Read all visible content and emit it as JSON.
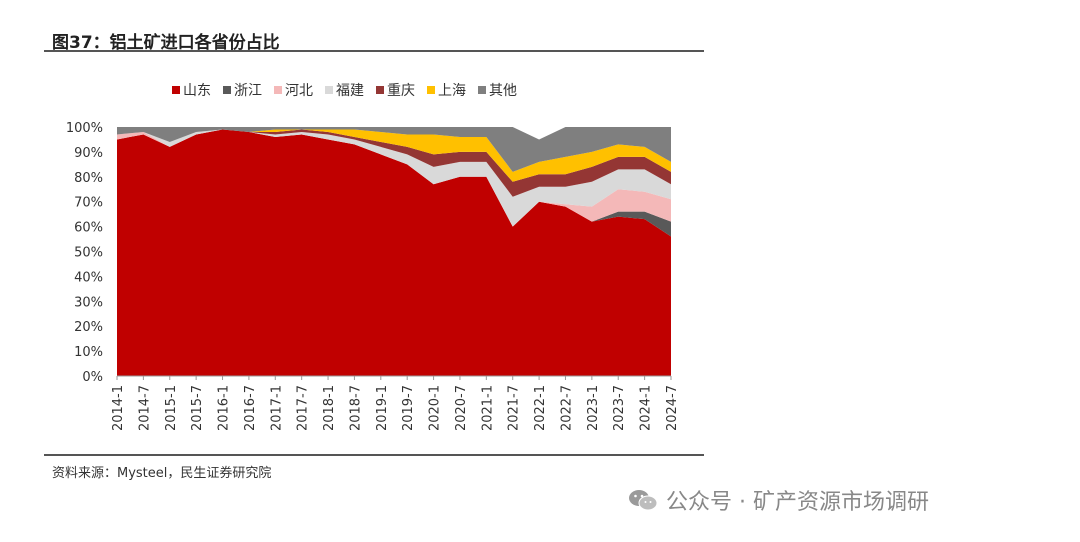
{
  "figure": {
    "title": "图37：铝土矿进口各省份占比",
    "source": "资料来源：Mysteel，民生证券研究院"
  },
  "watermark": {
    "icon": "wechat-icon",
    "text": "公众号 · 矿产资源市场调研"
  },
  "chart_data": {
    "type": "area",
    "stacked": true,
    "normalized": true,
    "yticks": [
      "0%",
      "10%",
      "20%",
      "30%",
      "40%",
      "50%",
      "60%",
      "70%",
      "80%",
      "90%",
      "100%"
    ],
    "ylim": [
      0,
      100
    ],
    "legend_position": "top",
    "categories": [
      "2014-1",
      "2014-7",
      "2015-1",
      "2015-7",
      "2016-1",
      "2016-7",
      "2017-1",
      "2017-7",
      "2018-1",
      "2018-7",
      "2019-1",
      "2019-7",
      "2020-1",
      "2020-7",
      "2021-1",
      "2021-7",
      "2022-1",
      "2022-7",
      "2023-1",
      "2023-7",
      "2024-1",
      "2024-7"
    ],
    "series": [
      {
        "name": "山东",
        "color": "#C00000",
        "values": [
          95,
          97,
          92,
          97,
          99,
          98,
          96,
          97,
          95,
          93,
          89,
          85,
          77,
          80,
          80,
          60,
          70,
          68,
          62,
          64,
          63,
          56
        ]
      },
      {
        "name": "浙江",
        "color": "#595959",
        "values": [
          0,
          0,
          0,
          0,
          0,
          0,
          0,
          0,
          0,
          0,
          0,
          0,
          0,
          0,
          0,
          0,
          0,
          0,
          0,
          2,
          3,
          6
        ]
      },
      {
        "name": "河北",
        "color": "#F4B8B8",
        "values": [
          2,
          1,
          0,
          0,
          0,
          0,
          0,
          0,
          0,
          0,
          0,
          0,
          0,
          0,
          0,
          0,
          0,
          1,
          6,
          9,
          8,
          9
        ]
      },
      {
        "name": "福建",
        "color": "#D9D9D9",
        "values": [
          0,
          0,
          2,
          1,
          0,
          0,
          1,
          1,
          2,
          2,
          3,
          4,
          7,
          6,
          6,
          12,
          6,
          7,
          10,
          8,
          9,
          6
        ]
      },
      {
        "name": "重庆",
        "color": "#943634",
        "values": [
          0,
          0,
          0,
          0,
          0,
          0,
          1,
          1,
          1,
          1,
          2,
          3,
          5,
          4,
          4,
          6,
          5,
          5,
          6,
          5,
          5,
          5
        ]
      },
      {
        "name": "上海",
        "color": "#FFC000",
        "values": [
          0,
          0,
          0,
          0,
          0,
          0,
          1,
          0,
          1,
          3,
          4,
          5,
          8,
          6,
          6,
          4,
          5,
          7,
          6,
          5,
          4,
          4
        ]
      },
      {
        "name": "其他",
        "color": "#7F7F7F",
        "values": [
          3,
          2,
          6,
          2,
          1,
          2,
          1,
          1,
          1,
          1,
          2,
          3,
          3,
          4,
          4,
          18,
          9,
          12,
          10,
          11,
          8,
          14
        ]
      }
    ]
  }
}
